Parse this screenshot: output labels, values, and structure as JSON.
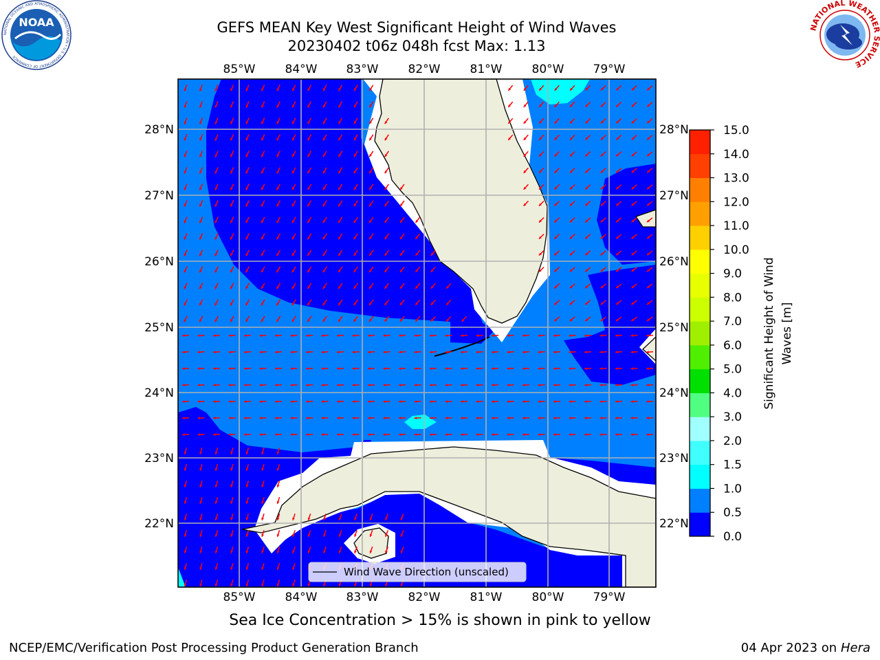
{
  "header": {
    "title_line1": "GEFS MEAN Key West Significant Height of Wind Waves",
    "title_line2": "20230402 t06z 048h fcst   Max: 1.13"
  },
  "logos": {
    "noaa": {
      "text": "NOAA",
      "ring_text": "NATIONAL OCEANIC AND ATMOSPHERIC ADMINISTRATION • U.S. DEPARTMENT OF COMMERCE",
      "icon": "noaa-logo-icon"
    },
    "nws": {
      "ring_text": "NATIONAL WEATHER SERVICE",
      "icon": "nws-logo-icon"
    }
  },
  "map": {
    "lon_labels": [
      "85°W",
      "84°W",
      "83°W",
      "82°W",
      "81°W",
      "80°W",
      "79°W"
    ],
    "lat_labels": [
      "28°N",
      "27°N",
      "26°N",
      "25°N",
      "24°N",
      "23°N",
      "22°N"
    ],
    "colors": {
      "land": "#eeeedd",
      "level_0_0_5": "#0000ff",
      "level_0_5_1_0": "#0080ff",
      "level_1_0_1_5": "#00ffff",
      "arrows": "#ff0000",
      "grid": "#b0b0b0"
    },
    "legend_label": "Wind Wave Direction (unscaled)"
  },
  "colorbar": {
    "label_line1": "Significant Height of Wind",
    "label_line2": "Waves [m]",
    "ticks": [
      "0.0",
      "0.5",
      "1.0",
      "1.5",
      "2.0",
      "3.0",
      "4.0",
      "5.0",
      "6.0",
      "7.0",
      "8.0",
      "9.0",
      "10.0",
      "11.0",
      "12.0",
      "13.0",
      "14.0",
      "15.0"
    ],
    "colors": [
      "#0000ff",
      "#0080ff",
      "#00ffff",
      "#40ffff",
      "#a0ffff",
      "#50ff80",
      "#00e000",
      "#50ee00",
      "#a0ee00",
      "#ccff00",
      "#e8ff00",
      "#ffff00",
      "#ffd000",
      "#ffa000",
      "#ff8000",
      "#ff4000",
      "#ff2000"
    ]
  },
  "caption": "Sea Ice Concentration > 15% is shown in pink to yellow",
  "footer": {
    "left": "NCEP/EMC/Verification Post Processing Product Generation Branch",
    "date": "04 Apr 2023 on ",
    "machine": "Hera"
  }
}
